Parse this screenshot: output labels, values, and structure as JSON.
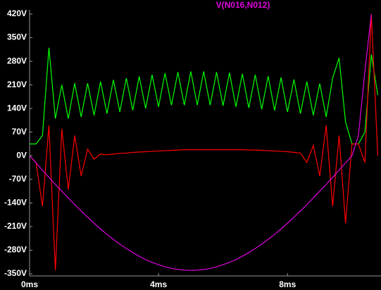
{
  "chart_data": {
    "type": "line",
    "title": "V(N016,N012)",
    "x": [
      0,
      0.2,
      0.4,
      0.6,
      0.8,
      1.0,
      1.2,
      1.4,
      1.6,
      1.8,
      2.0,
      2.2,
      2.4,
      2.6,
      2.8,
      3.0,
      3.2,
      3.4,
      3.6,
      3.8,
      4.0,
      4.2,
      4.4,
      4.6,
      4.8,
      5.0,
      5.2,
      5.4,
      5.6,
      5.8,
      6.0,
      6.2,
      6.4,
      6.6,
      6.8,
      7.0,
      7.2,
      7.4,
      7.6,
      7.8,
      8.0,
      8.2,
      8.4,
      8.6,
      8.8,
      9.0,
      9.2,
      9.4,
      9.6,
      9.8,
      10.0,
      10.2,
      10.4,
      10.6,
      10.8
    ],
    "series": [
      {
        "color": "#00ff00",
        "values": [
          35,
          35,
          60,
          320,
          110,
          210,
          110,
          215,
          115,
          215,
          120,
          220,
          125,
          225,
          130,
          230,
          135,
          235,
          140,
          240,
          145,
          245,
          150,
          248,
          150,
          250,
          150,
          250,
          150,
          248,
          148,
          246,
          145,
          243,
          142,
          240,
          138,
          236,
          134,
          232,
          130,
          226,
          125,
          220,
          120,
          214,
          115,
          230,
          290,
          100,
          35,
          35,
          70,
          300,
          180
        ]
      },
      {
        "color": "#ff0000",
        "values": [
          0,
          -20,
          -150,
          90,
          -340,
          80,
          -100,
          60,
          -60,
          20,
          -10,
          5,
          3,
          5,
          7,
          8,
          10,
          11,
          12,
          13,
          14,
          15,
          16,
          17,
          18,
          18,
          18,
          18,
          18,
          18,
          18,
          18,
          18,
          18,
          17,
          17,
          16,
          15,
          14,
          13,
          12,
          10,
          8,
          -20,
          30,
          -60,
          90,
          -150,
          60,
          -200,
          35,
          35,
          -20,
          420,
          0
        ]
      },
      {
        "name": "V(N016,N012)",
        "color": "#e000e0",
        "values": [
          0,
          -21,
          -43,
          -64,
          -85,
          -105,
          -125,
          -145,
          -164,
          -182,
          -200,
          -217,
          -233,
          -248,
          -262,
          -275,
          -287,
          -298,
          -308,
          -316,
          -323,
          -329,
          -334,
          -337,
          -339,
          -340,
          -339,
          -337,
          -334,
          -329,
          -323,
          -316,
          -308,
          -298,
          -287,
          -275,
          -262,
          -248,
          -233,
          -217,
          -200,
          -182,
          -164,
          -145,
          -125,
          -105,
          -85,
          -64,
          -43,
          -21,
          0,
          60,
          250,
          420,
          null
        ]
      }
    ],
    "xlim": [
      0,
      10.9
    ],
    "xticks": [
      {
        "value": 0,
        "label": "0ms"
      },
      {
        "value": 4,
        "label": "4ms"
      },
      {
        "value": 8,
        "label": "8ms"
      }
    ],
    "ylim": [
      -350,
      420
    ],
    "yticks": [
      {
        "value": 420,
        "label": "420V"
      },
      {
        "value": 350,
        "label": "350V"
      },
      {
        "value": 280,
        "label": "280V"
      },
      {
        "value": 210,
        "label": "210V"
      },
      {
        "value": 140,
        "label": "140V"
      },
      {
        "value": 70,
        "label": "70V"
      },
      {
        "value": 0,
        "label": "0V"
      },
      {
        "value": -70,
        "label": "-70V"
      },
      {
        "value": -140,
        "label": "-140V"
      },
      {
        "value": -210,
        "label": "-210V"
      },
      {
        "value": -280,
        "label": "-280V"
      },
      {
        "value": -350,
        "label": "-350V"
      }
    ],
    "grid": false
  }
}
